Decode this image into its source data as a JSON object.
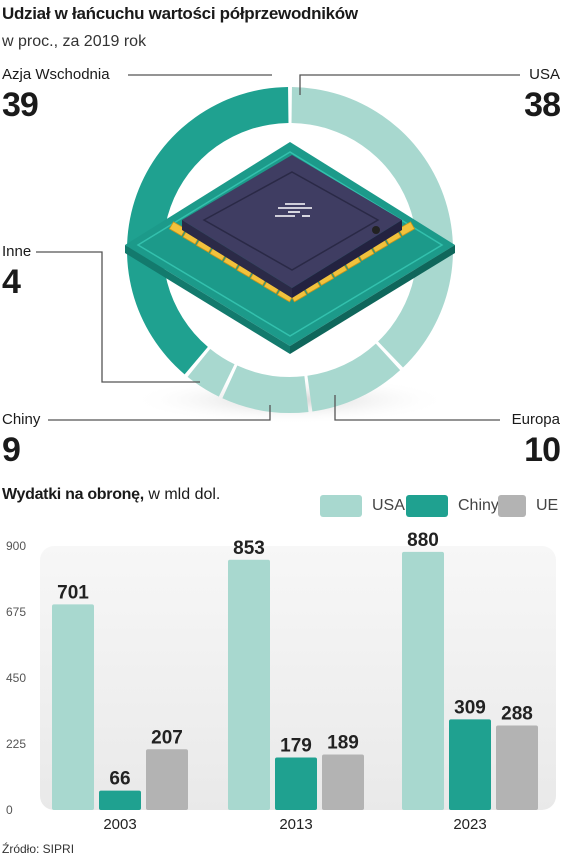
{
  "header": {
    "title": "Udział w łańcuchu wartości półprzewodników",
    "subtitle": "w proc., za 2019 rok"
  },
  "donut": {
    "chart_data": {
      "type": "pie",
      "title": "Udział w łańcuchu wartości półprzewodników",
      "subtitle": "w proc., za 2019 rok",
      "slices": [
        {
          "name": "USA",
          "value": 38,
          "color": "#a8d8cf"
        },
        {
          "name": "Europa",
          "value": 10,
          "color": "#a8d8cf"
        },
        {
          "name": "Chiny",
          "value": 9,
          "color": "#a8d8cf"
        },
        {
          "name": "Inne",
          "value": 4,
          "color": "#a8d8cf"
        },
        {
          "name": "Azja Wschodnia",
          "value": 39,
          "color": "#1fa190"
        }
      ]
    },
    "labels": {
      "azja": {
        "name": "Azja Wschodnia",
        "value": "39"
      },
      "usa": {
        "name": "USA",
        "value": "38"
      },
      "inne": {
        "name": "Inne",
        "value": "4"
      },
      "chiny": {
        "name": "Chiny",
        "value": "9"
      },
      "europa": {
        "name": "Europa",
        "value": "10"
      }
    },
    "chip_icon": "microchip-icon"
  },
  "bars": {
    "title_bold": "Wydatki na obronę,",
    "title_rest": " w mld dol.",
    "legend": [
      {
        "name": "USA",
        "color": "#a8d8cf"
      },
      {
        "name": "Chiny",
        "color": "#1fa190"
      },
      {
        "name": "UE",
        "color": "#b3b3b3"
      }
    ],
    "chart_data": {
      "type": "bar",
      "title": "Wydatki na obronę, w mld dol.",
      "categories": [
        "2003",
        "2013",
        "2023"
      ],
      "series": [
        {
          "name": "USA",
          "values": [
            701,
            853,
            880
          ],
          "color": "#a8d8cf"
        },
        {
          "name": "Chiny",
          "values": [
            66,
            179,
            309
          ],
          "color": "#1fa190"
        },
        {
          "name": "UE",
          "values": [
            207,
            189,
            288
          ],
          "color": "#b3b3b3"
        }
      ],
      "yticks": [
        0,
        225,
        450,
        675,
        900
      ],
      "ylim": [
        0,
        900
      ],
      "grid": false,
      "legend": "top-right"
    }
  },
  "footer": {
    "source": "Źródło: SIPRI"
  }
}
